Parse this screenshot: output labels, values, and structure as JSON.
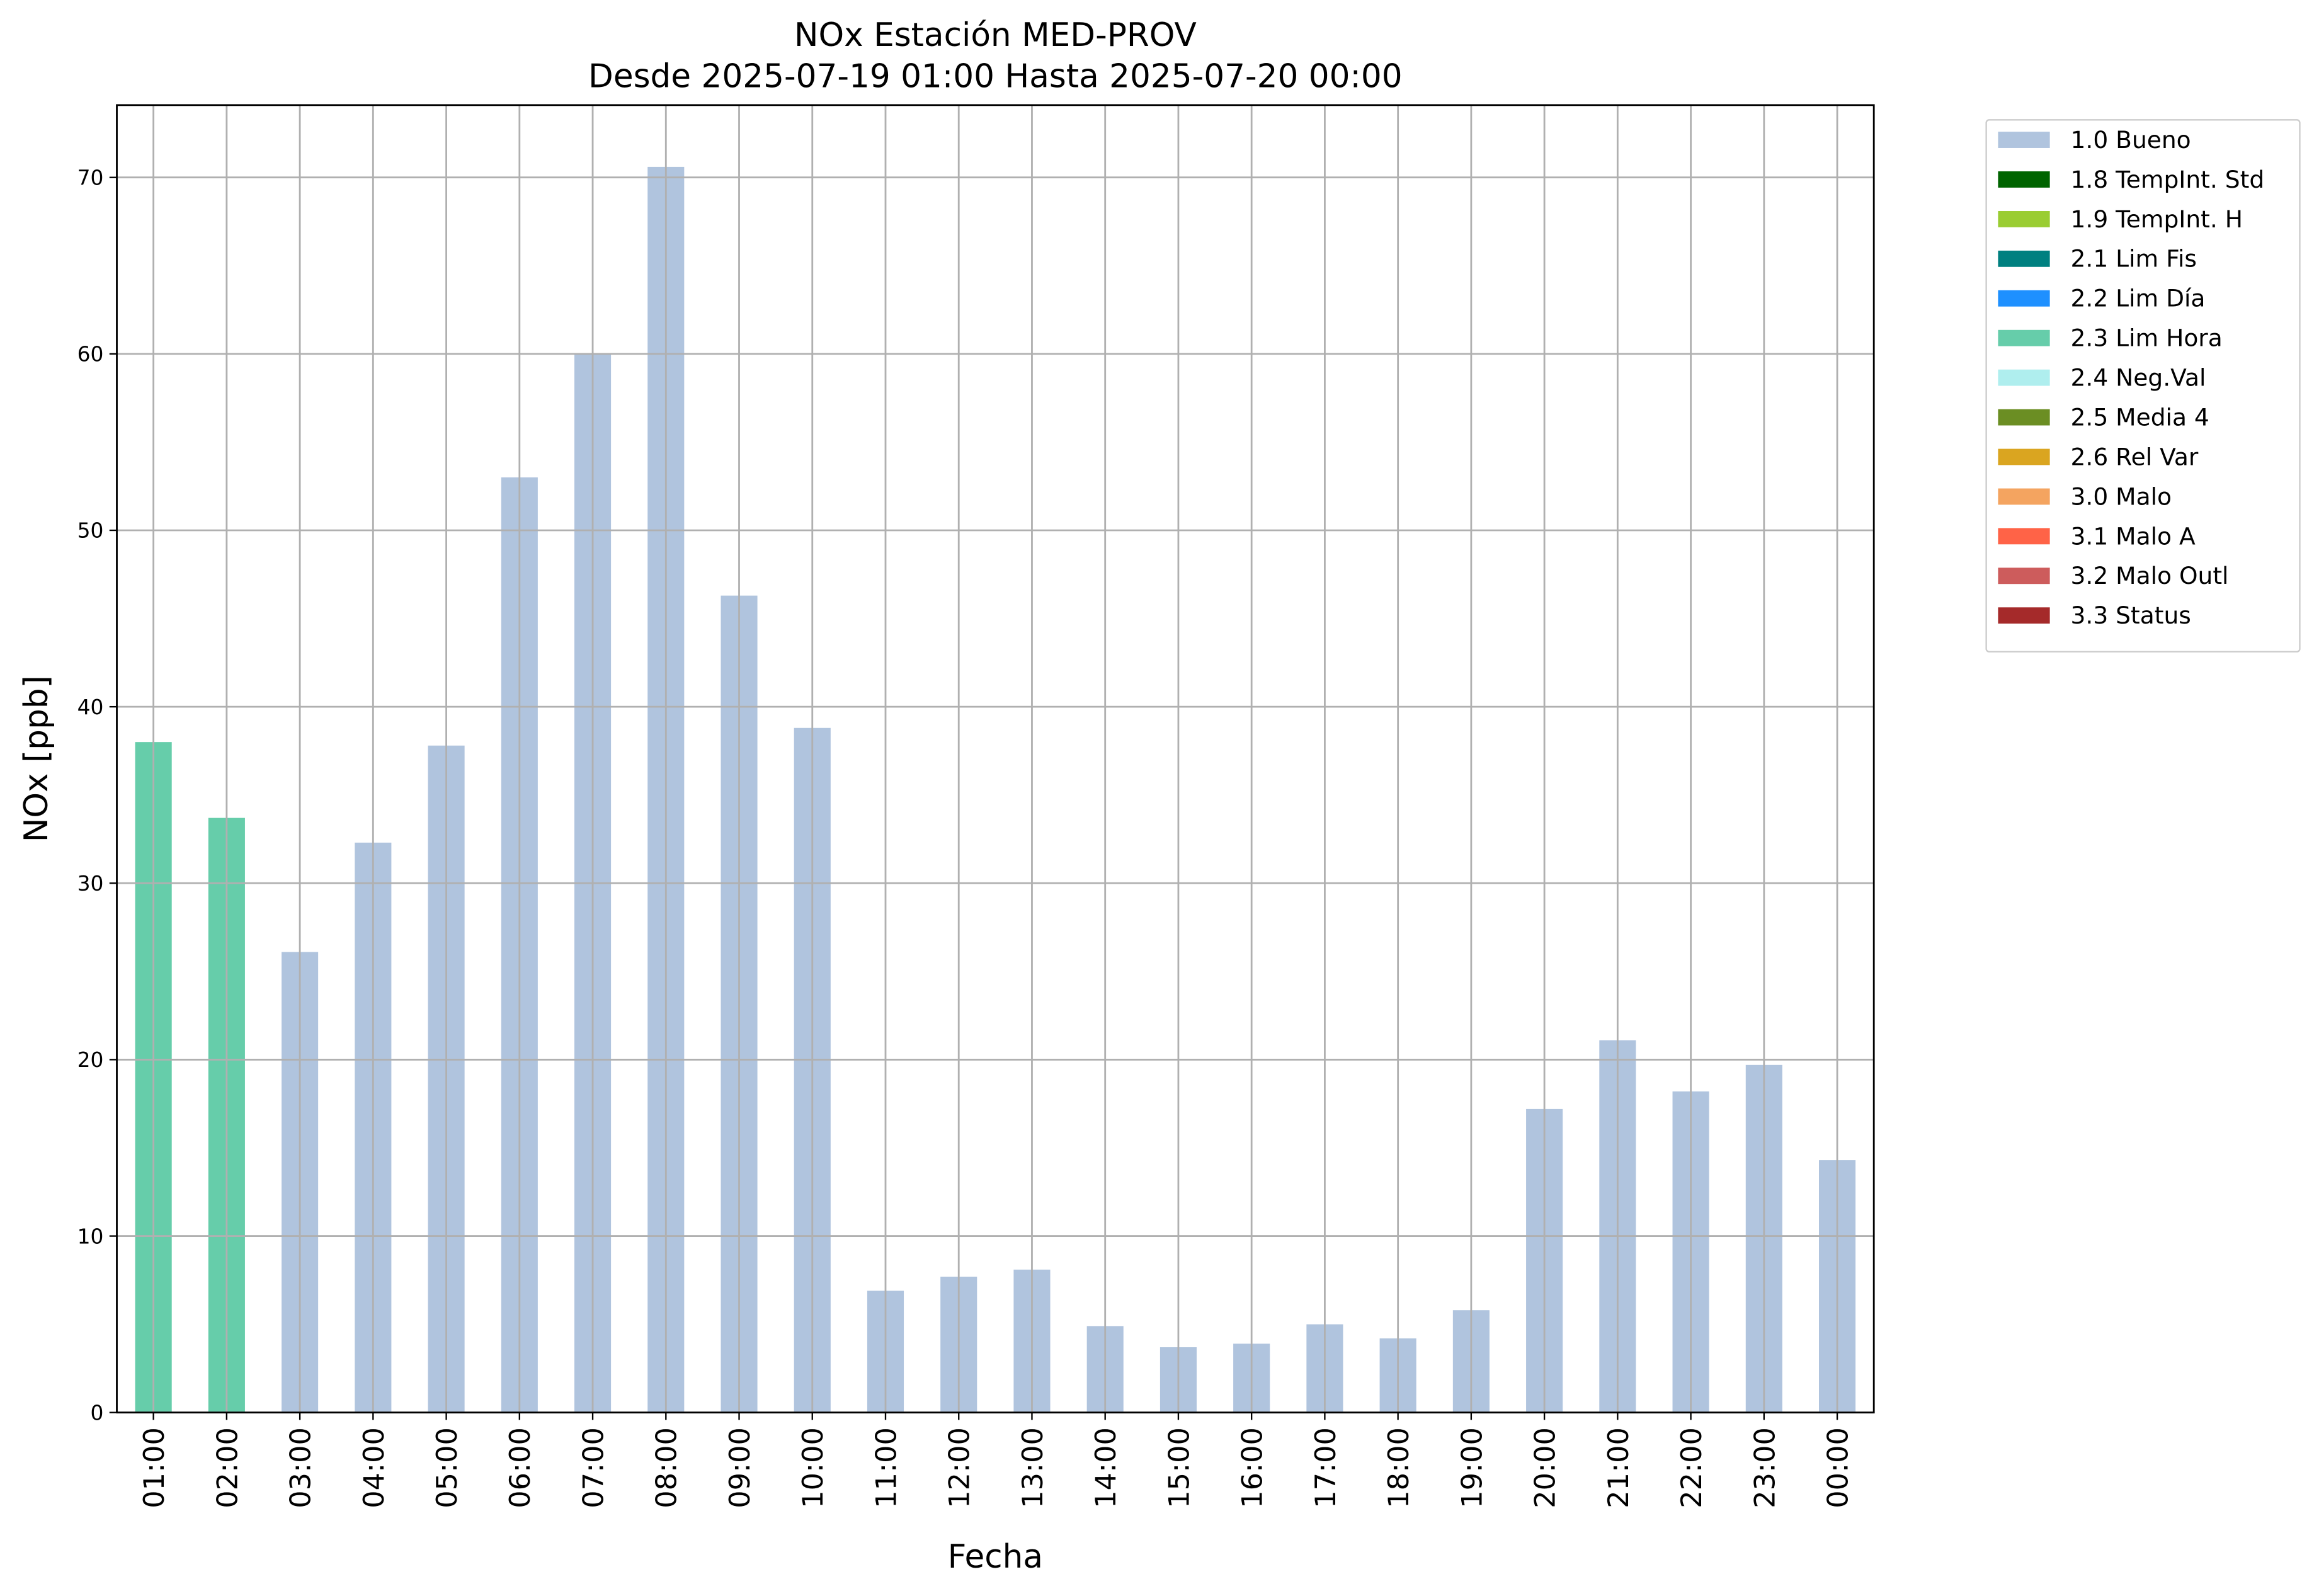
{
  "chart_data": {
    "type": "stacked_bar",
    "title": "NOx Estación MED-PROV",
    "subtitle": "Desde 2025-07-19 01:00 Hasta 2025-07-20 00:00",
    "x_label": "Fecha",
    "y_label": "NOx [ppb]",
    "categories": [
      "01:00",
      "02:00",
      "03:00",
      "04:00",
      "05:00",
      "06:00",
      "07:00",
      "08:00",
      "09:00",
      "10:00",
      "11:00",
      "12:00",
      "13:00",
      "14:00",
      "15:00",
      "16:00",
      "17:00",
      "18:00",
      "19:00",
      "20:00",
      "21:00",
      "22:00",
      "23:00",
      "00:00"
    ],
    "series": [
      {
        "name": "1.0 Bueno",
        "color": "#b0c4de",
        "values": [
          null,
          null,
          26.1,
          32.3,
          37.8,
          53.0,
          60.0,
          70.6,
          46.3,
          38.8,
          6.9,
          7.7,
          8.1,
          4.9,
          3.7,
          3.9,
          5.0,
          4.2,
          5.8,
          17.2,
          21.1,
          18.2,
          19.7,
          14.3
        ]
      },
      {
        "name": "1.8 TempInt. Std",
        "color": "#006400",
        "values": [
          null,
          null,
          null,
          null,
          null,
          null,
          null,
          null,
          null,
          null,
          null,
          null,
          null,
          null,
          null,
          null,
          null,
          null,
          null,
          null,
          null,
          null,
          null,
          null
        ]
      },
      {
        "name": "1.9 TempInt. H",
        "color": "#9acd32",
        "values": [
          null,
          null,
          null,
          null,
          null,
          null,
          null,
          null,
          null,
          null,
          null,
          null,
          null,
          null,
          null,
          null,
          null,
          null,
          null,
          null,
          null,
          null,
          null,
          null
        ]
      },
      {
        "name": "2.1 Lim Fis",
        "color": "#008080",
        "values": [
          null,
          null,
          null,
          null,
          null,
          null,
          null,
          null,
          null,
          null,
          null,
          null,
          null,
          null,
          null,
          null,
          null,
          null,
          null,
          null,
          null,
          null,
          null,
          null
        ]
      },
      {
        "name": "2.2 Lim Día",
        "color": "#1e90ff",
        "values": [
          null,
          null,
          null,
          null,
          null,
          null,
          null,
          null,
          null,
          null,
          null,
          null,
          null,
          null,
          null,
          null,
          null,
          null,
          null,
          null,
          null,
          null,
          null,
          null
        ]
      },
      {
        "name": "2.3 Lim Hora",
        "color": "#66cdaa",
        "values": [
          38.0,
          33.7,
          null,
          null,
          null,
          null,
          null,
          null,
          null,
          null,
          null,
          null,
          null,
          null,
          null,
          null,
          null,
          null,
          null,
          null,
          null,
          null,
          null,
          null
        ]
      },
      {
        "name": "2.4 Neg.Val",
        "color": "#afeeee",
        "values": [
          null,
          null,
          null,
          null,
          null,
          null,
          null,
          null,
          null,
          null,
          null,
          null,
          null,
          null,
          null,
          null,
          null,
          null,
          null,
          null,
          null,
          null,
          null,
          null
        ]
      },
      {
        "name": "2.5 Media 4",
        "color": "#6b8e23",
        "values": [
          null,
          null,
          null,
          null,
          null,
          null,
          null,
          null,
          null,
          null,
          null,
          null,
          null,
          null,
          null,
          null,
          null,
          null,
          null,
          null,
          null,
          null,
          null,
          null
        ]
      },
      {
        "name": "2.6 Rel Var",
        "color": "#daa520",
        "values": [
          null,
          null,
          null,
          null,
          null,
          null,
          null,
          null,
          null,
          null,
          null,
          null,
          null,
          null,
          null,
          null,
          null,
          null,
          null,
          null,
          null,
          null,
          null,
          null
        ]
      },
      {
        "name": "3.0 Malo",
        "color": "#f4a460",
        "values": [
          null,
          null,
          null,
          null,
          null,
          null,
          null,
          null,
          null,
          null,
          null,
          null,
          null,
          null,
          null,
          null,
          null,
          null,
          null,
          null,
          null,
          null,
          null,
          null
        ]
      },
      {
        "name": "3.1 Malo A",
        "color": "#ff6347",
        "values": [
          null,
          null,
          null,
          null,
          null,
          null,
          null,
          null,
          null,
          null,
          null,
          null,
          null,
          null,
          null,
          null,
          null,
          null,
          null,
          null,
          null,
          null,
          null,
          null
        ]
      },
      {
        "name": "3.2 Malo Outl",
        "color": "#cd5c5c",
        "values": [
          null,
          null,
          null,
          null,
          null,
          null,
          null,
          null,
          null,
          null,
          null,
          null,
          null,
          null,
          null,
          null,
          null,
          null,
          null,
          null,
          null,
          null,
          null,
          null
        ]
      },
      {
        "name": "3.3 Status",
        "color": "#a52a2a",
        "values": [
          null,
          null,
          null,
          null,
          null,
          null,
          null,
          null,
          null,
          null,
          null,
          null,
          null,
          null,
          null,
          null,
          null,
          null,
          null,
          null,
          null,
          null,
          null,
          null
        ]
      }
    ],
    "ylim": [
      0,
      74.1
    ],
    "yticks": [
      0,
      10,
      20,
      30,
      40,
      50,
      60,
      70
    ],
    "grid": true,
    "legend": "outside-right"
  }
}
